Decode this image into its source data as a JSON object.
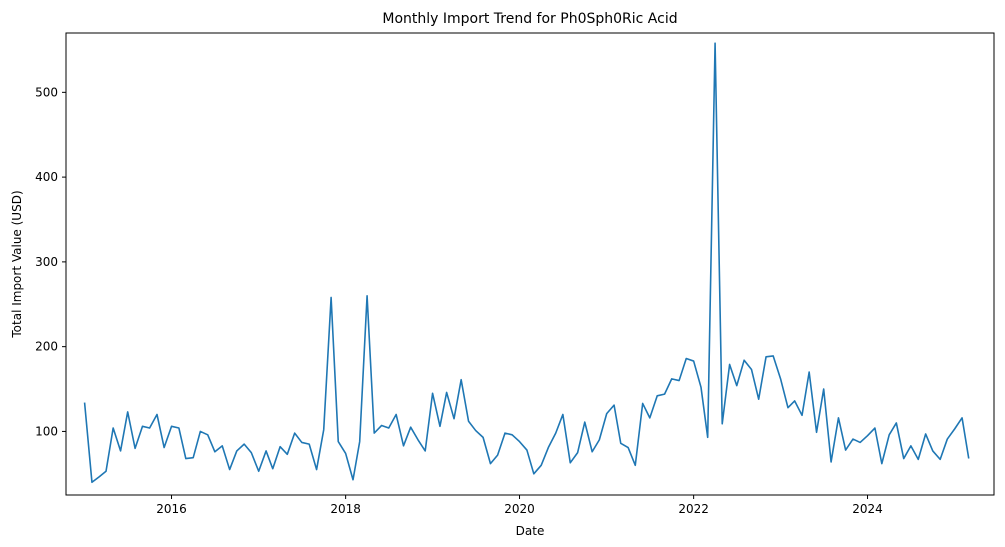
{
  "chart_data": {
    "type": "line",
    "title": "Monthly Import Trend for Ph0Sph0Ric Acid",
    "xlabel": "Date",
    "ylabel": "Total Import Value (USD)",
    "xlim": [
      "2014-10-15",
      "2025-06-15"
    ],
    "ylim": [
      25,
      570
    ],
    "x_ticks": [
      "2016",
      "2018",
      "2020",
      "2022",
      "2024"
    ],
    "y_ticks": [
      "100",
      "200",
      "300",
      "400",
      "500"
    ],
    "grid": false,
    "line_color": "#1f77b4",
    "series": [
      {
        "x": [
          "2015-01",
          "2015-02",
          "2015-03",
          "2015-04",
          "2015-05",
          "2015-06",
          "2015-07",
          "2015-08",
          "2015-09",
          "2015-10",
          "2015-11",
          "2015-12",
          "2016-01",
          "2016-02",
          "2016-03",
          "2016-04",
          "2016-05",
          "2016-06",
          "2016-07",
          "2016-08",
          "2016-09",
          "2016-10",
          "2016-11",
          "2016-12",
          "2017-01",
          "2017-02",
          "2017-03",
          "2017-04",
          "2017-05",
          "2017-06",
          "2017-07",
          "2017-08",
          "2017-09",
          "2017-10",
          "2017-11",
          "2017-12",
          "2018-01",
          "2018-02",
          "2018-03",
          "2018-04",
          "2018-05",
          "2018-06",
          "2018-07",
          "2018-08",
          "2018-09",
          "2018-10",
          "2018-11",
          "2018-12",
          "2019-01",
          "2019-02",
          "2019-03",
          "2019-04",
          "2019-05",
          "2019-06",
          "2019-07",
          "2019-08",
          "2019-09",
          "2019-10",
          "2019-11",
          "2019-12",
          "2020-01",
          "2020-02",
          "2020-03",
          "2020-04",
          "2020-05",
          "2020-06",
          "2020-07",
          "2020-08",
          "2020-09",
          "2020-10",
          "2020-11",
          "2020-12",
          "2021-01",
          "2021-02",
          "2021-03",
          "2021-04",
          "2021-05",
          "2021-06",
          "2021-07",
          "2021-08",
          "2021-09",
          "2021-10",
          "2021-11",
          "2021-12",
          "2022-01",
          "2022-02",
          "2022-03",
          "2022-04",
          "2022-05",
          "2022-06",
          "2022-07",
          "2022-08",
          "2022-09",
          "2022-10",
          "2022-11",
          "2022-12",
          "2023-01",
          "2023-02",
          "2023-03",
          "2023-04",
          "2023-05",
          "2023-06",
          "2023-07",
          "2023-08",
          "2023-09",
          "2023-10",
          "2023-11",
          "2023-12",
          "2024-01",
          "2024-02",
          "2024-03",
          "2024-04",
          "2024-05",
          "2024-06",
          "2024-07",
          "2024-08",
          "2024-09",
          "2024-10",
          "2024-11",
          "2024-12",
          "2025-01",
          "2025-02",
          "2025-03"
        ],
        "values": [
          134,
          40,
          46,
          53,
          104,
          77,
          123,
          80,
          106,
          104,
          120,
          81,
          106,
          104,
          68,
          69,
          100,
          96,
          76,
          83,
          55,
          77,
          85,
          75,
          53,
          77,
          56,
          82,
          73,
          98,
          87,
          85,
          55,
          102,
          258,
          88,
          74,
          43,
          88,
          260,
          98,
          107,
          104,
          120,
          83,
          105,
          90,
          77,
          145,
          106,
          146,
          115,
          161,
          112,
          101,
          93,
          62,
          72,
          98,
          96,
          88,
          78,
          50,
          60,
          81,
          98,
          120,
          63,
          75,
          111,
          76,
          90,
          121,
          131,
          86,
          81,
          60,
          133,
          116,
          142,
          144,
          162,
          160,
          186,
          183,
          152,
          93,
          558,
          109,
          179,
          154,
          184,
          173,
          138,
          188,
          189,
          162,
          128,
          136,
          119,
          170,
          99,
          150,
          64,
          116,
          78,
          91,
          87,
          95,
          104,
          62,
          96,
          110,
          68,
          83,
          67,
          97,
          77,
          67,
          91,
          103,
          116,
          68
        ]
      }
    ]
  }
}
